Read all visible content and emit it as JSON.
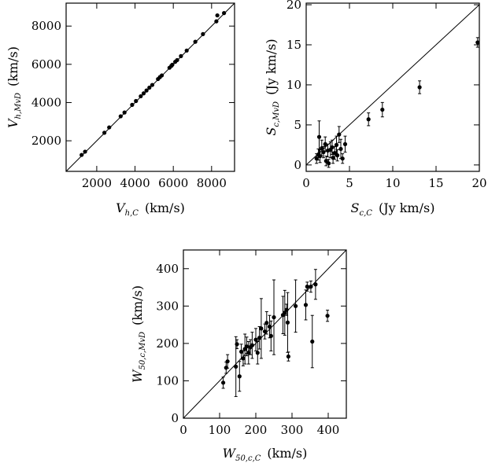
{
  "chart_data": [
    {
      "id": "velocity",
      "type": "scatter",
      "xlim": [
        400,
        9200
      ],
      "ylim": [
        400,
        9200
      ],
      "xticks": [
        2000,
        4000,
        6000,
        8000
      ],
      "yticks": [
        2000,
        4000,
        6000,
        8000
      ],
      "xtick_labels": [
        "2000",
        "4000",
        "6000",
        "8000"
      ],
      "ytick_labels": [
        "2000",
        "4000",
        "6000",
        "8000"
      ],
      "xlabel": {
        "main": "V",
        "sub": "h,C",
        "units": "(km/s)"
      },
      "ylabel": {
        "main": "V",
        "sub": "h,MvD",
        "units": "(km/s)"
      },
      "diagonal": true,
      "points": [
        {
          "x": 1210,
          "y": 1260
        },
        {
          "x": 1390,
          "y": 1430
        },
        {
          "x": 2400,
          "y": 2420
        },
        {
          "x": 2650,
          "y": 2700
        },
        {
          "x": 3250,
          "y": 3280
        },
        {
          "x": 3450,
          "y": 3480
        },
        {
          "x": 3850,
          "y": 3880
        },
        {
          "x": 4050,
          "y": 4080
        },
        {
          "x": 4300,
          "y": 4330
        },
        {
          "x": 4450,
          "y": 4480
        },
        {
          "x": 4600,
          "y": 4630
        },
        {
          "x": 4750,
          "y": 4780
        },
        {
          "x": 4900,
          "y": 4920
        },
        {
          "x": 5200,
          "y": 5230
        },
        {
          "x": 5300,
          "y": 5330
        },
        {
          "x": 5400,
          "y": 5420
        },
        {
          "x": 5800,
          "y": 5820
        },
        {
          "x": 5900,
          "y": 5920
        },
        {
          "x": 5950,
          "y": 5980
        },
        {
          "x": 6100,
          "y": 6130
        },
        {
          "x": 6200,
          "y": 6220
        },
        {
          "x": 6400,
          "y": 6430
        },
        {
          "x": 6700,
          "y": 6720
        },
        {
          "x": 7150,
          "y": 7180
        },
        {
          "x": 7550,
          "y": 7580
        },
        {
          "x": 8250,
          "y": 8250
        },
        {
          "x": 8300,
          "y": 8560
        },
        {
          "x": 8650,
          "y": 8680
        }
      ]
    },
    {
      "id": "flux",
      "type": "scatter",
      "xlim": [
        0,
        20
      ],
      "ylim": [
        -0.8,
        20.2
      ],
      "xticks": [
        0,
        5,
        10,
        15,
        20
      ],
      "yticks": [
        0,
        5,
        10,
        15,
        20
      ],
      "xtick_labels": [
        "0",
        "5",
        "10",
        "15",
        "20"
      ],
      "ytick_labels": [
        "0",
        "5",
        "10",
        "15",
        "20"
      ],
      "xlabel": {
        "main": "S",
        "sub": "c,C",
        "units": "(Jy km/s)"
      },
      "ylabel": {
        "main": "S",
        "sub": "c,MvD",
        "units": "(Jy km/s)"
      },
      "diagonal": true,
      "points": [
        {
          "x": 1.2,
          "y": 0.8,
          "err": 0.6
        },
        {
          "x": 1.4,
          "y": 1.3,
          "err": 0.7
        },
        {
          "x": 1.5,
          "y": 3.5,
          "err": 2.0
        },
        {
          "x": 1.6,
          "y": 1.1,
          "err": 0.8
        },
        {
          "x": 1.8,
          "y": 2.1,
          "err": 1.0
        },
        {
          "x": 2.0,
          "y": 1.6,
          "err": 0.7
        },
        {
          "x": 2.2,
          "y": 2.6,
          "err": 0.9
        },
        {
          "x": 2.3,
          "y": 0.5,
          "err": 0.6
        },
        {
          "x": 2.5,
          "y": 1.8,
          "err": 0.8
        },
        {
          "x": 2.6,
          "y": 0.2,
          "err": 0.5
        },
        {
          "x": 2.8,
          "y": 1.9,
          "err": 1.0
        },
        {
          "x": 3.0,
          "y": 2.2,
          "err": 0.9
        },
        {
          "x": 3.1,
          "y": 0.9,
          "err": 0.7
        },
        {
          "x": 3.3,
          "y": 1.5,
          "err": 0.8
        },
        {
          "x": 3.5,
          "y": 2.5,
          "err": 1.1
        },
        {
          "x": 3.6,
          "y": 1.2,
          "err": 0.7
        },
        {
          "x": 3.8,
          "y": 3.8,
          "err": 1.0
        },
        {
          "x": 4.0,
          "y": 2.0,
          "err": 1.2
        },
        {
          "x": 4.2,
          "y": 0.8,
          "err": 0.6
        },
        {
          "x": 4.5,
          "y": 2.6,
          "err": 1.0
        },
        {
          "x": 7.2,
          "y": 5.7,
          "err": 0.8
        },
        {
          "x": 8.8,
          "y": 6.9,
          "err": 0.9
        },
        {
          "x": 13.1,
          "y": 9.7,
          "err": 0.8
        },
        {
          "x": 19.8,
          "y": 15.3,
          "err": 0.6
        }
      ]
    },
    {
      "id": "width",
      "type": "scatter",
      "xlim": [
        0,
        450
      ],
      "ylim": [
        0,
        450
      ],
      "xticks": [
        0,
        100,
        200,
        300,
        400
      ],
      "yticks": [
        0,
        100,
        200,
        300,
        400
      ],
      "xtick_labels": [
        "0",
        "100",
        "200",
        "300",
        "400"
      ],
      "ytick_labels": [
        "0",
        "100",
        "200",
        "300",
        "400"
      ],
      "xlabel": {
        "main": "W",
        "sub": "50,c,C",
        "units": "(km/s)"
      },
      "ylabel": {
        "main": "W",
        "sub": "50,c,MvD",
        "units": "(km/s)"
      },
      "diagonal": true,
      "points": [
        {
          "x": 110,
          "y": 95,
          "err": 15
        },
        {
          "x": 118,
          "y": 135,
          "err": 15
        },
        {
          "x": 122,
          "y": 152,
          "err": 18
        },
        {
          "x": 145,
          "y": 138,
          "err": 80
        },
        {
          "x": 148,
          "y": 198,
          "err": 12
        },
        {
          "x": 155,
          "y": 112,
          "err": 40
        },
        {
          "x": 160,
          "y": 178,
          "err": 20
        },
        {
          "x": 165,
          "y": 160,
          "err": 20
        },
        {
          "x": 170,
          "y": 185,
          "err": 40
        },
        {
          "x": 175,
          "y": 192,
          "err": 25
        },
        {
          "x": 180,
          "y": 175,
          "err": 30
        },
        {
          "x": 185,
          "y": 190,
          "err": 20
        },
        {
          "x": 190,
          "y": 195,
          "err": 35
        },
        {
          "x": 200,
          "y": 210,
          "err": 30
        },
        {
          "x": 205,
          "y": 175,
          "err": 30
        },
        {
          "x": 210,
          "y": 215,
          "err": 30
        },
        {
          "x": 215,
          "y": 240,
          "err": 80
        },
        {
          "x": 225,
          "y": 232,
          "err": 20
        },
        {
          "x": 230,
          "y": 255,
          "err": 30
        },
        {
          "x": 238,
          "y": 245,
          "err": 30
        },
        {
          "x": 242,
          "y": 220,
          "err": 40
        },
        {
          "x": 250,
          "y": 270,
          "err": 100
        },
        {
          "x": 275,
          "y": 276,
          "err": 50
        },
        {
          "x": 280,
          "y": 282,
          "err": 60
        },
        {
          "x": 285,
          "y": 290,
          "err": 15
        },
        {
          "x": 288,
          "y": 256,
          "err": 80
        },
        {
          "x": 290,
          "y": 165,
          "err": 12
        },
        {
          "x": 310,
          "y": 300,
          "err": 70
        },
        {
          "x": 338,
          "y": 303,
          "err": 40
        },
        {
          "x": 342,
          "y": 352,
          "err": 12
        },
        {
          "x": 352,
          "y": 352,
          "err": 15
        },
        {
          "x": 356,
          "y": 205,
          "err": 70
        },
        {
          "x": 365,
          "y": 358,
          "err": 40
        },
        {
          "x": 398,
          "y": 274,
          "err": 15
        }
      ]
    }
  ]
}
